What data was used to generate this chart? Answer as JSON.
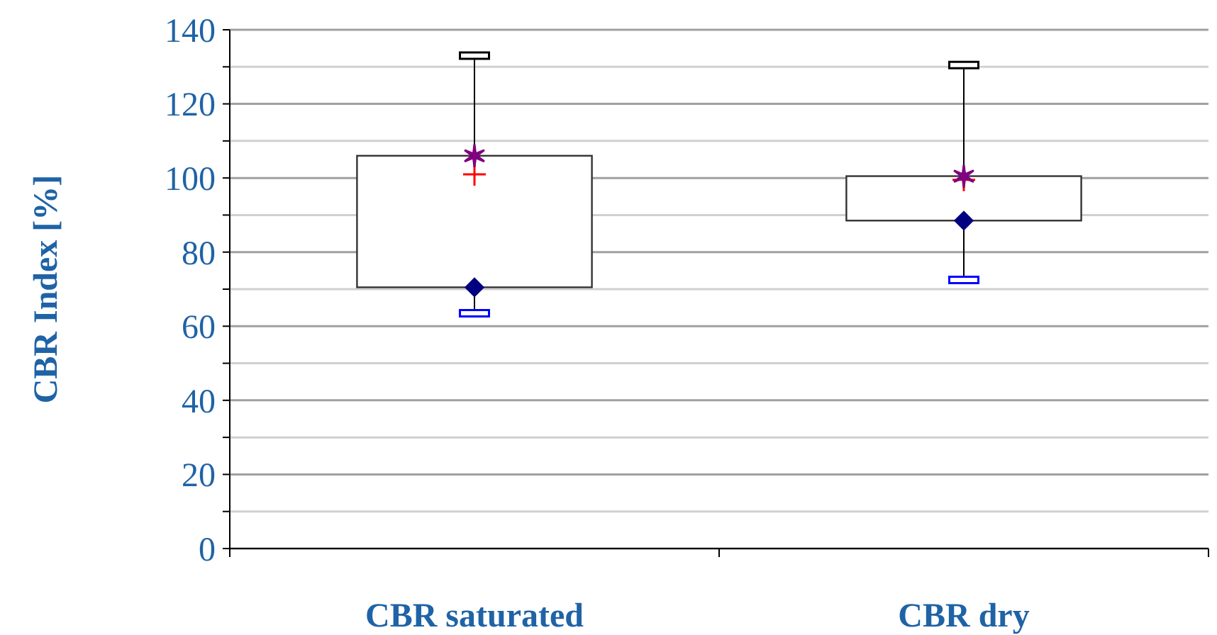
{
  "chart_data": {
    "type": "box",
    "ylabel": "CBR Index [%]",
    "categories": [
      "CBR saturated",
      "CBR dry"
    ],
    "boxes": [
      {
        "low": 63.5,
        "q1": 70.5,
        "median": 101,
        "q3": 106,
        "high": 133
      },
      {
        "low": 72.5,
        "q1": 88.5,
        "median": 99.5,
        "q3": 100.5,
        "high": 130.5
      }
    ],
    "series": [
      {
        "type": "scatter",
        "x": [
          "CBR saturated",
          "CBR dry"
        ],
        "color": "#000080",
        "marker": "diamond",
        "values": [
          70.5,
          88.5
        ]
      },
      {
        "type": "scatter",
        "x": [
          "CBR saturated",
          "CBR dry"
        ],
        "color": "#800080",
        "marker": "cross",
        "values": [
          106,
          100.5
        ]
      }
    ],
    "ylim": [
      0,
      140
    ],
    "yticks": [
      0,
      {
        "value": 10,
        "label": null
      },
      20,
      {
        "value": 30,
        "label": null
      },
      40,
      {
        "value": 50,
        "label": null
      },
      60,
      {
        "value": 70,
        "label": null
      },
      80,
      {
        "value": 90,
        "label": null
      },
      100,
      {
        "value": 110,
        "label": null
      },
      120,
      {
        "value": 130,
        "label": null
      },
      140
    ],
    "grid": true
  }
}
